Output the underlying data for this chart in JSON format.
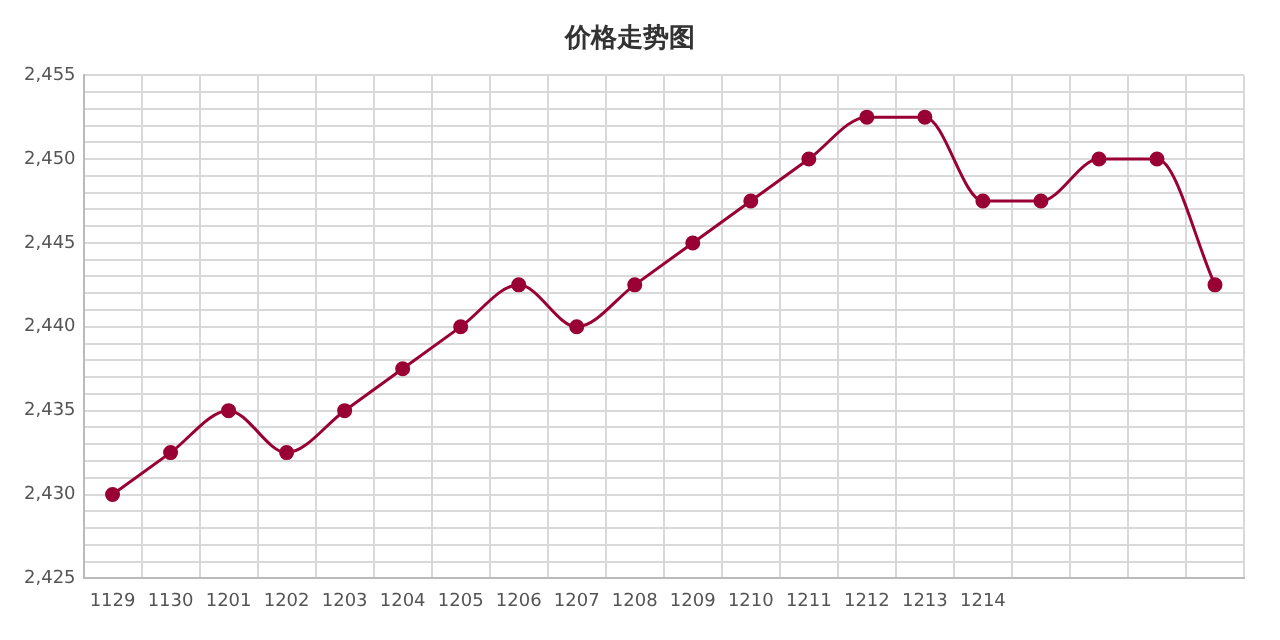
{
  "chart_data": {
    "type": "line",
    "title": "价格走势图",
    "categories": [
      "1129",
      "1130",
      "1201",
      "1202",
      "1203",
      "1204",
      "1205",
      "1206",
      "1207",
      "1208",
      "1209",
      "1210",
      "1211",
      "1212",
      "1213",
      "1214",
      null,
      null,
      null,
      null
    ],
    "series": [
      {
        "color": "#990033",
        "values": [
          2430,
          2432.5,
          2435,
          2432.5,
          2435,
          2437.5,
          2440,
          2442.5,
          2440,
          2442.5,
          2445,
          2447.5,
          2450,
          2452.5,
          2452.5,
          2447.5,
          2447.5,
          2450,
          2450,
          2442.5
        ]
      }
    ],
    "ylim": [
      2425,
      2455
    ],
    "yticks": [
      {
        "value": 2425,
        "label": "2,425"
      },
      {
        "value": 2426,
        "label": null
      },
      {
        "value": 2427,
        "label": null
      },
      {
        "value": 2428,
        "label": null
      },
      {
        "value": 2429,
        "label": null
      },
      {
        "value": 2430,
        "label": "2,430"
      },
      {
        "value": 2431,
        "label": null
      },
      {
        "value": 2432,
        "label": null
      },
      {
        "value": 2433,
        "label": null
      },
      {
        "value": 2434,
        "label": null
      },
      {
        "value": 2435,
        "label": "2,435"
      },
      {
        "value": 2436,
        "label": null
      },
      {
        "value": 2437,
        "label": null
      },
      {
        "value": 2438,
        "label": null
      },
      {
        "value": 2439,
        "label": null
      },
      {
        "value": 2440,
        "label": "2,440"
      },
      {
        "value": 2441,
        "label": null
      },
      {
        "value": 2442,
        "label": null
      },
      {
        "value": 2443,
        "label": null
      },
      {
        "value": 2444,
        "label": null
      },
      {
        "value": 2445,
        "label": "2,445"
      },
      {
        "value": 2446,
        "label": null
      },
      {
        "value": 2447,
        "label": null
      },
      {
        "value": 2448,
        "label": null
      },
      {
        "value": 2449,
        "label": null
      },
      {
        "value": 2450,
        "label": "2,450"
      },
      {
        "value": 2451,
        "label": null
      },
      {
        "value": 2452,
        "label": null
      },
      {
        "value": 2453,
        "label": null
      },
      {
        "value": 2454,
        "label": null
      },
      {
        "value": 2455,
        "label": "2,455"
      }
    ],
    "grid": true,
    "marker": "circle",
    "line_style": "solid"
  }
}
